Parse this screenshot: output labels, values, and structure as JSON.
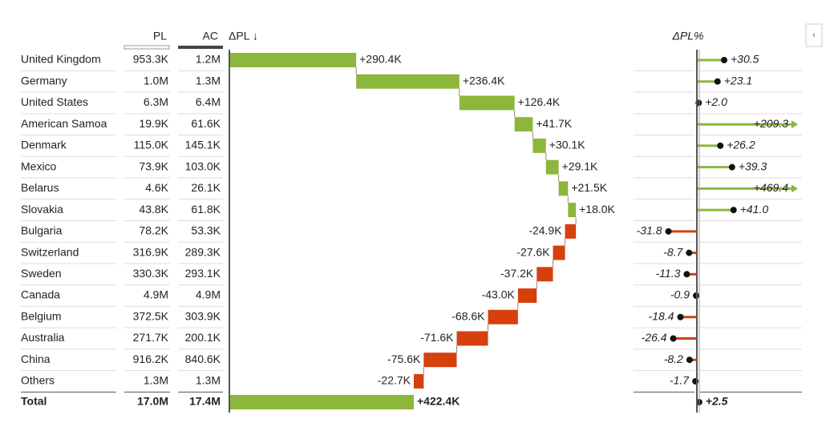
{
  "headers": {
    "pl": "PL",
    "ac": "AC",
    "delta": "ΔPL ↓",
    "pct": "ΔPL%"
  },
  "rows": [
    {
      "name": "United Kingdom",
      "pl": "953.3K",
      "ac": "1.2M",
      "delta": 290.4,
      "delta_label": "+290.4K",
      "pct": 30.5,
      "pct_label": "+30.5"
    },
    {
      "name": "Germany",
      "pl": "1.0M",
      "ac": "1.3M",
      "delta": 236.4,
      "delta_label": "+236.4K",
      "pct": 23.1,
      "pct_label": "+23.1"
    },
    {
      "name": "United States",
      "pl": "6.3M",
      "ac": "6.4M",
      "delta": 126.4,
      "delta_label": "+126.4K",
      "pct": 2.0,
      "pct_label": "+2.0"
    },
    {
      "name": "American Samoa",
      "pl": "19.9K",
      "ac": "61.6K",
      "delta": 41.7,
      "delta_label": "+41.7K",
      "pct": 209.3,
      "pct_label": "+209.3"
    },
    {
      "name": "Denmark",
      "pl": "115.0K",
      "ac": "145.1K",
      "delta": 30.1,
      "delta_label": "+30.1K",
      "pct": 26.2,
      "pct_label": "+26.2"
    },
    {
      "name": "Mexico",
      "pl": "73.9K",
      "ac": "103.0K",
      "delta": 29.1,
      "delta_label": "+29.1K",
      "pct": 39.3,
      "pct_label": "+39.3"
    },
    {
      "name": "Belarus",
      "pl": "4.6K",
      "ac": "26.1K",
      "delta": 21.5,
      "delta_label": "+21.5K",
      "pct": 469.4,
      "pct_label": "+469.4"
    },
    {
      "name": "Slovakia",
      "pl": "43.8K",
      "ac": "61.8K",
      "delta": 18.0,
      "delta_label": "+18.0K",
      "pct": 41.0,
      "pct_label": "+41.0"
    },
    {
      "name": "Bulgaria",
      "pl": "78.2K",
      "ac": "53.3K",
      "delta": -24.9,
      "delta_label": "-24.9K",
      "pct": -31.8,
      "pct_label": "-31.8"
    },
    {
      "name": "Switzerland",
      "pl": "316.9K",
      "ac": "289.3K",
      "delta": -27.6,
      "delta_label": "-27.6K",
      "pct": -8.7,
      "pct_label": "-8.7"
    },
    {
      "name": "Sweden",
      "pl": "330.3K",
      "ac": "293.1K",
      "delta": -37.2,
      "delta_label": "-37.2K",
      "pct": -11.3,
      "pct_label": "-11.3"
    },
    {
      "name": "Canada",
      "pl": "4.9M",
      "ac": "4.9M",
      "delta": -43.0,
      "delta_label": "-43.0K",
      "pct": -0.9,
      "pct_label": "-0.9"
    },
    {
      "name": "Belgium",
      "pl": "372.5K",
      "ac": "303.9K",
      "delta": -68.6,
      "delta_label": "-68.6K",
      "pct": -18.4,
      "pct_label": "-18.4"
    },
    {
      "name": "Australia",
      "pl": "271.7K",
      "ac": "200.1K",
      "delta": -71.6,
      "delta_label": "-71.6K",
      "pct": -26.4,
      "pct_label": "-26.4"
    },
    {
      "name": "China",
      "pl": "916.2K",
      "ac": "840.6K",
      "delta": -75.6,
      "delta_label": "-75.6K",
      "pct": -8.2,
      "pct_label": "-8.2"
    },
    {
      "name": "Others",
      "pl": "1.3M",
      "ac": "1.3M",
      "delta": -22.7,
      "delta_label": "-22.7K",
      "pct": -1.7,
      "pct_label": "-1.7"
    }
  ],
  "total": {
    "name": "Total",
    "pl": "17.0M",
    "ac": "17.4M",
    "delta": 422.4,
    "delta_label": "+422.4K",
    "pct": 2.5,
    "pct_label": "+2.5"
  }
}
